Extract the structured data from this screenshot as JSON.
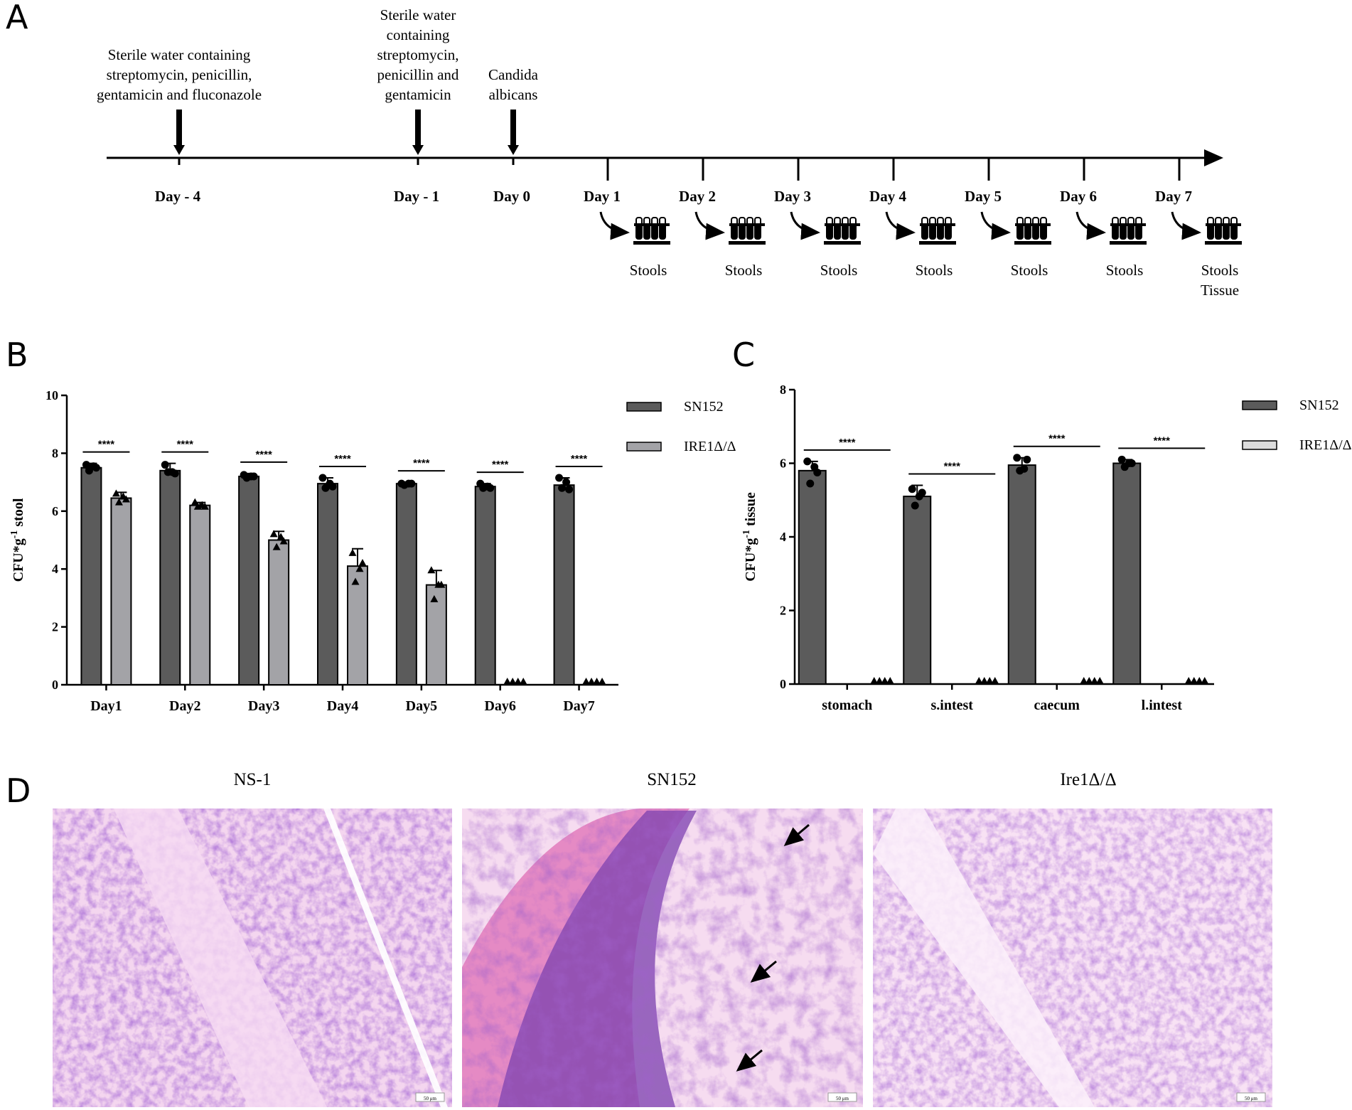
{
  "panel_labels": [
    "A",
    "B",
    "C",
    "D"
  ],
  "timeline": {
    "events": [
      {
        "lines": [
          "Sterile water containing",
          "streptomycin, penicillin,",
          "gentamicin and fluconazole"
        ],
        "day": "Day - 4"
      },
      {
        "lines": [
          "Sterile water",
          "containing",
          "streptomycin,",
          "penicillin and",
          "gentamicin"
        ],
        "day": "Day - 1"
      },
      {
        "lines": [
          "Candida",
          "albicans"
        ],
        "day": "Day 0"
      }
    ],
    "samplings": [
      {
        "day": "Day 1",
        "label": [
          "Stools"
        ]
      },
      {
        "day": "Day 2",
        "label": [
          "Stools"
        ]
      },
      {
        "day": "Day 3",
        "label": [
          "Stools"
        ]
      },
      {
        "day": "Day 4",
        "label": [
          "Stools"
        ]
      },
      {
        "day": "Day 5",
        "label": [
          "Stools"
        ]
      },
      {
        "day": "Day 6",
        "label": [
          "Stools"
        ]
      },
      {
        "day": "Day 7",
        "label": [
          "Stools",
          "Tissue"
        ]
      }
    ]
  },
  "chart_data": [
    {
      "type": "bar",
      "ylabel_base": "CFU*g",
      "ylabel_sup": "-1",
      "ylabel_tail": " stool",
      "ylim": [
        0,
        10
      ],
      "yticks": [
        0,
        2,
        4,
        6,
        8,
        10
      ],
      "categories": [
        "Day1",
        "Day2",
        "Day3",
        "Day4",
        "Day5",
        "Day6",
        "Day7"
      ],
      "significance": [
        "****",
        "****",
        "****",
        "****",
        "****",
        "****",
        "****"
      ],
      "series": [
        {
          "name": "SN152",
          "color": "#5b5b5b",
          "marker": "circle",
          "values": [
            7.5,
            7.4,
            7.2,
            6.95,
            6.95,
            6.85,
            6.9
          ],
          "errors": [
            0.15,
            0.25,
            0.1,
            0.2,
            0.05,
            0.1,
            0.25
          ],
          "points": [
            [
              7.6,
              7.5,
              7.4,
              7.55
            ],
            [
              7.6,
              7.3,
              7.35,
              7.35
            ],
            [
              7.25,
              7.2,
              7.15,
              7.2
            ],
            [
              7.15,
              6.85,
              6.8,
              6.95
            ],
            [
              6.95,
              6.95,
              6.9,
              6.95
            ],
            [
              6.95,
              6.8,
              6.8,
              6.85
            ],
            [
              7.15,
              6.75,
              6.8,
              7.0
            ]
          ]
        },
        {
          "name": "IRE1Δ/Δ",
          "color": "#a3a3a7",
          "marker": "triangle",
          "values": [
            6.45,
            6.2,
            5.0,
            4.1,
            3.45,
            0,
            0
          ],
          "errors": [
            0.2,
            0.1,
            0.3,
            0.6,
            0.5,
            0,
            0
          ],
          "points": [
            [
              6.6,
              6.4,
              6.3,
              6.5
            ],
            [
              6.3,
              6.15,
              6.15,
              6.2
            ],
            [
              5.2,
              4.95,
              4.75,
              5.1
            ],
            [
              4.55,
              4.2,
              3.55,
              4.0
            ],
            [
              3.95,
              3.45,
              2.95,
              3.45
            ],
            [
              0,
              0,
              0,
              0
            ],
            [
              0,
              0,
              0,
              0
            ]
          ]
        }
      ]
    },
    {
      "type": "bar",
      "ylabel_base": "CFU*g",
      "ylabel_sup": "-1",
      "ylabel_tail": " tissue",
      "ylim": [
        0,
        8
      ],
      "yticks": [
        0,
        2,
        4,
        6,
        8
      ],
      "categories": [
        "stomach",
        "s.intest",
        "caecum",
        "l.intest"
      ],
      "significance": [
        "****",
        "****",
        "****",
        "****"
      ],
      "series": [
        {
          "name": "SN152",
          "color": "#5b5b5b",
          "marker": "circle",
          "values": [
            5.8,
            5.1,
            5.95,
            6.0
          ],
          "errors": [
            0.25,
            0.3,
            0.2,
            0.1
          ],
          "points": [
            [
              6.05,
              5.75,
              5.45,
              5.9
            ],
            [
              5.3,
              5.2,
              4.85,
              5.1
            ],
            [
              6.15,
              6.1,
              5.8,
              5.85
            ],
            [
              6.1,
              6.0,
              5.9,
              6.0
            ]
          ]
        },
        {
          "name": "IRE1Δ/Δ",
          "color": "#dcdcdc",
          "marker": "triangle",
          "values": [
            0,
            0,
            0,
            0
          ],
          "errors": [
            0,
            0,
            0,
            0
          ],
          "points": [
            [
              0,
              0,
              0,
              0
            ],
            [
              0,
              0,
              0,
              0
            ],
            [
              0,
              0,
              0,
              0
            ],
            [
              0,
              0,
              0,
              0
            ]
          ]
        }
      ]
    }
  ],
  "histology": {
    "titles": [
      "NS-1",
      "SN152",
      "Ire1Δ/Δ"
    ],
    "scale_bar": "50 μm"
  }
}
